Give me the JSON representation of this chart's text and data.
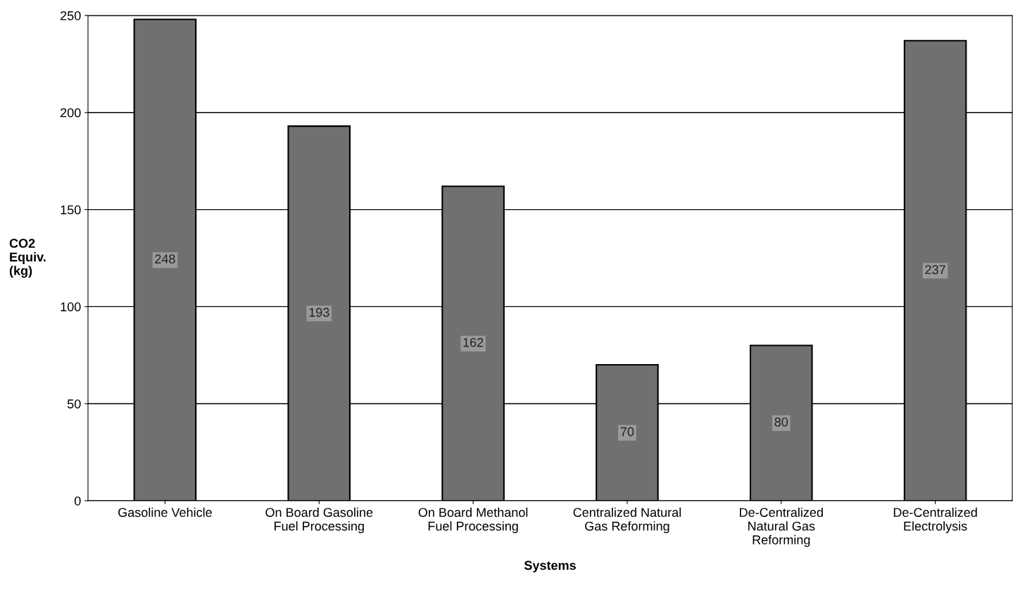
{
  "chart_data": {
    "type": "bar",
    "categories": [
      "Gasoline Vehicle",
      "On Board Gasoline Fuel Processing",
      "On Board Methanol Fuel Processing",
      "Centralized Natural Gas Reforming",
      "De-Centralized Natural Gas Reforming",
      "De-Centralized Electrolysis"
    ],
    "values": [
      248,
      193,
      162,
      70,
      80,
      237
    ],
    "color": "#707070",
    "xlabel": "Systems",
    "ylabel": "CO2 Equiv. (kg)",
    "ylim": [
      0,
      250
    ],
    "yticks": [
      0,
      50,
      100,
      150,
      200,
      250
    ],
    "grid": "y",
    "data_labels": true
  }
}
